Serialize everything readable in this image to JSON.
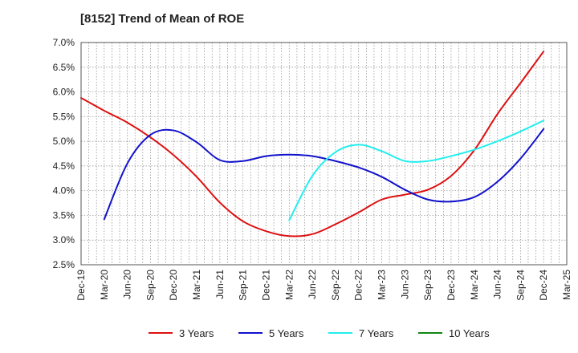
{
  "chart_data": {
    "type": "line",
    "title": "[8152]  Trend of Mean of ROE",
    "xlabel": "",
    "ylabel": "",
    "ylim": [
      2.5,
      7.0
    ],
    "yticks": [
      "2.5%",
      "3.0%",
      "3.5%",
      "4.0%",
      "4.5%",
      "5.0%",
      "5.5%",
      "6.0%",
      "6.5%",
      "7.0%"
    ],
    "categories": [
      "Dec-19",
      "Mar-20",
      "Jun-20",
      "Sep-20",
      "Dec-20",
      "Mar-21",
      "Jun-21",
      "Sep-21",
      "Dec-21",
      "Mar-22",
      "Jun-22",
      "Sep-22",
      "Dec-22",
      "Mar-23",
      "Jun-23",
      "Sep-23",
      "Dec-23",
      "Mar-24",
      "Jun-24",
      "Sep-24",
      "Dec-24",
      "Mar-25"
    ],
    "grid": true,
    "legend_position": "bottom",
    "series": [
      {
        "name": "3 Years",
        "color": "#dd1111",
        "values": [
          5.88,
          5.62,
          5.38,
          5.08,
          4.72,
          4.28,
          3.76,
          3.38,
          3.18,
          3.08,
          3.12,
          3.32,
          3.56,
          3.82,
          3.92,
          4.02,
          4.3,
          4.82,
          5.55,
          6.18,
          6.82,
          null
        ]
      },
      {
        "name": "5 Years",
        "color": "#1111cc",
        "values": [
          null,
          3.42,
          4.55,
          5.13,
          5.22,
          4.98,
          4.62,
          4.6,
          4.7,
          4.73,
          4.7,
          4.6,
          4.47,
          4.28,
          4.02,
          3.82,
          3.78,
          3.87,
          4.18,
          4.65,
          5.25,
          null
        ]
      },
      {
        "name": "7 Years",
        "color": "#22eeee",
        "values": [
          null,
          null,
          null,
          null,
          null,
          null,
          null,
          null,
          null,
          3.4,
          4.3,
          4.78,
          4.93,
          4.8,
          4.6,
          4.6,
          4.7,
          4.83,
          5.0,
          5.2,
          5.42,
          null
        ]
      },
      {
        "name": "10 Years",
        "color": "#118811",
        "values": [
          null,
          null,
          null,
          null,
          null,
          null,
          null,
          null,
          null,
          null,
          null,
          null,
          null,
          null,
          null,
          null,
          null,
          null,
          null,
          null,
          null,
          null
        ]
      }
    ]
  }
}
